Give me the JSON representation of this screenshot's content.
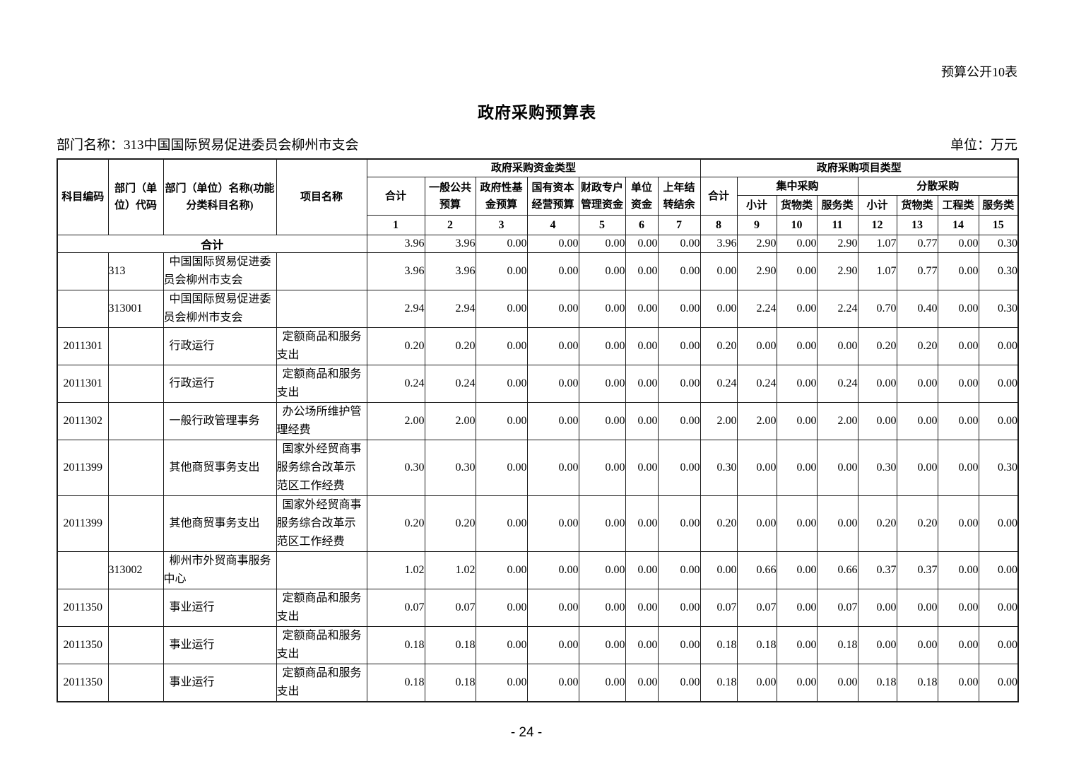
{
  "page": {
    "corner_note": "预算公开10表",
    "title": "政府采购预算表",
    "dept_label": "部门名称：313中国国际贸易促进委员会柳州市支会",
    "unit_label": "单位：万元",
    "page_number": "- 24 -"
  },
  "table": {
    "headers": {
      "subject_code": "科目编码",
      "dept_code": "部门（单位）代码",
      "dept_name": "部门（单位）名称(功能分类科目名称)",
      "project_name": "项目名称",
      "fund_type_group": "政府采购资金类型",
      "project_type_group": "政府采购项目类型",
      "fund_cols": [
        "合计",
        "一般公共预算",
        "政府性基金预算",
        "国有资本经营预算",
        "财政专户管理资金",
        "单位资金",
        "上年结转结余"
      ],
      "project_total": "合计",
      "centralized_group": "集中采购",
      "decentralized_group": "分散采购",
      "centralized_cols": [
        "小计",
        "货物类",
        "服务类"
      ],
      "decentralized_cols": [
        "小计",
        "货物类",
        "工程类",
        "服务类"
      ],
      "col_numbers": [
        "1",
        "2",
        "3",
        "4",
        "5",
        "6",
        "7",
        "8",
        "9",
        "10",
        "11",
        "12",
        "13",
        "14",
        "15"
      ]
    },
    "rows": [
      {
        "total": true,
        "label": "合计",
        "code": "",
        "dept_code": "",
        "name": "",
        "project": "",
        "values": [
          "3.96",
          "3.96",
          "0.00",
          "0.00",
          "0.00",
          "0.00",
          "0.00",
          "3.96",
          "2.90",
          "0.00",
          "2.90",
          "1.07",
          "0.77",
          "0.00",
          "0.30"
        ]
      },
      {
        "code": "",
        "dept_code": "313",
        "name": "中国国际贸易促进委员会柳州市支会",
        "project": "",
        "values": [
          "3.96",
          "3.96",
          "0.00",
          "0.00",
          "0.00",
          "0.00",
          "0.00",
          "0.00",
          "2.90",
          "0.00",
          "2.90",
          "1.07",
          "0.77",
          "0.00",
          "0.30"
        ]
      },
      {
        "code": "",
        "dept_code": "313001",
        "name": "中国国际贸易促进委员会柳州市支会",
        "project": "",
        "values": [
          "2.94",
          "2.94",
          "0.00",
          "0.00",
          "0.00",
          "0.00",
          "0.00",
          "0.00",
          "2.24",
          "0.00",
          "2.24",
          "0.70",
          "0.40",
          "0.00",
          "0.30"
        ]
      },
      {
        "code": "2011301",
        "dept_code": "",
        "name": "行政运行",
        "project": "定额商品和服务支出",
        "values": [
          "0.20",
          "0.20",
          "0.00",
          "0.00",
          "0.00",
          "0.00",
          "0.00",
          "0.20",
          "0.00",
          "0.00",
          "0.00",
          "0.20",
          "0.20",
          "0.00",
          "0.00"
        ]
      },
      {
        "code": "2011301",
        "dept_code": "",
        "name": "行政运行",
        "project": "定额商品和服务支出",
        "values": [
          "0.24",
          "0.24",
          "0.00",
          "0.00",
          "0.00",
          "0.00",
          "0.00",
          "0.24",
          "0.24",
          "0.00",
          "0.24",
          "0.00",
          "0.00",
          "0.00",
          "0.00"
        ]
      },
      {
        "code": "2011302",
        "dept_code": "",
        "name": "一般行政管理事务",
        "project": "办公场所维护管理经费",
        "values": [
          "2.00",
          "2.00",
          "0.00",
          "0.00",
          "0.00",
          "0.00",
          "0.00",
          "2.00",
          "2.00",
          "0.00",
          "2.00",
          "0.00",
          "0.00",
          "0.00",
          "0.00"
        ]
      },
      {
        "code": "2011399",
        "dept_code": "",
        "name": "其他商贸事务支出",
        "project": "国家外经贸商事服务综合改革示范区工作经费",
        "values": [
          "0.30",
          "0.30",
          "0.00",
          "0.00",
          "0.00",
          "0.00",
          "0.00",
          "0.30",
          "0.00",
          "0.00",
          "0.00",
          "0.30",
          "0.00",
          "0.00",
          "0.30"
        ]
      },
      {
        "code": "2011399",
        "dept_code": "",
        "name": "其他商贸事务支出",
        "project": "国家外经贸商事服务综合改革示范区工作经费",
        "values": [
          "0.20",
          "0.20",
          "0.00",
          "0.00",
          "0.00",
          "0.00",
          "0.00",
          "0.20",
          "0.00",
          "0.00",
          "0.00",
          "0.20",
          "0.20",
          "0.00",
          "0.00"
        ]
      },
      {
        "code": "",
        "dept_code": "313002",
        "name": "柳州市外贸商事服务中心",
        "project": "",
        "values": [
          "1.02",
          "1.02",
          "0.00",
          "0.00",
          "0.00",
          "0.00",
          "0.00",
          "0.00",
          "0.66",
          "0.00",
          "0.66",
          "0.37",
          "0.37",
          "0.00",
          "0.00"
        ]
      },
      {
        "code": "2011350",
        "dept_code": "",
        "name": "事业运行",
        "project": "定额商品和服务支出",
        "values": [
          "0.07",
          "0.07",
          "0.00",
          "0.00",
          "0.00",
          "0.00",
          "0.00",
          "0.07",
          "0.07",
          "0.00",
          "0.07",
          "0.00",
          "0.00",
          "0.00",
          "0.00"
        ]
      },
      {
        "code": "2011350",
        "dept_code": "",
        "name": "事业运行",
        "project": "定额商品和服务支出",
        "values": [
          "0.18",
          "0.18",
          "0.00",
          "0.00",
          "0.00",
          "0.00",
          "0.00",
          "0.18",
          "0.18",
          "0.00",
          "0.18",
          "0.00",
          "0.00",
          "0.00",
          "0.00"
        ]
      },
      {
        "code": "2011350",
        "dept_code": "",
        "name": "事业运行",
        "project": "定额商品和服务支出",
        "values": [
          "0.18",
          "0.18",
          "0.00",
          "0.00",
          "0.00",
          "0.00",
          "0.00",
          "0.18",
          "0.00",
          "0.00",
          "0.00",
          "0.18",
          "0.18",
          "0.00",
          "0.00"
        ]
      }
    ]
  }
}
